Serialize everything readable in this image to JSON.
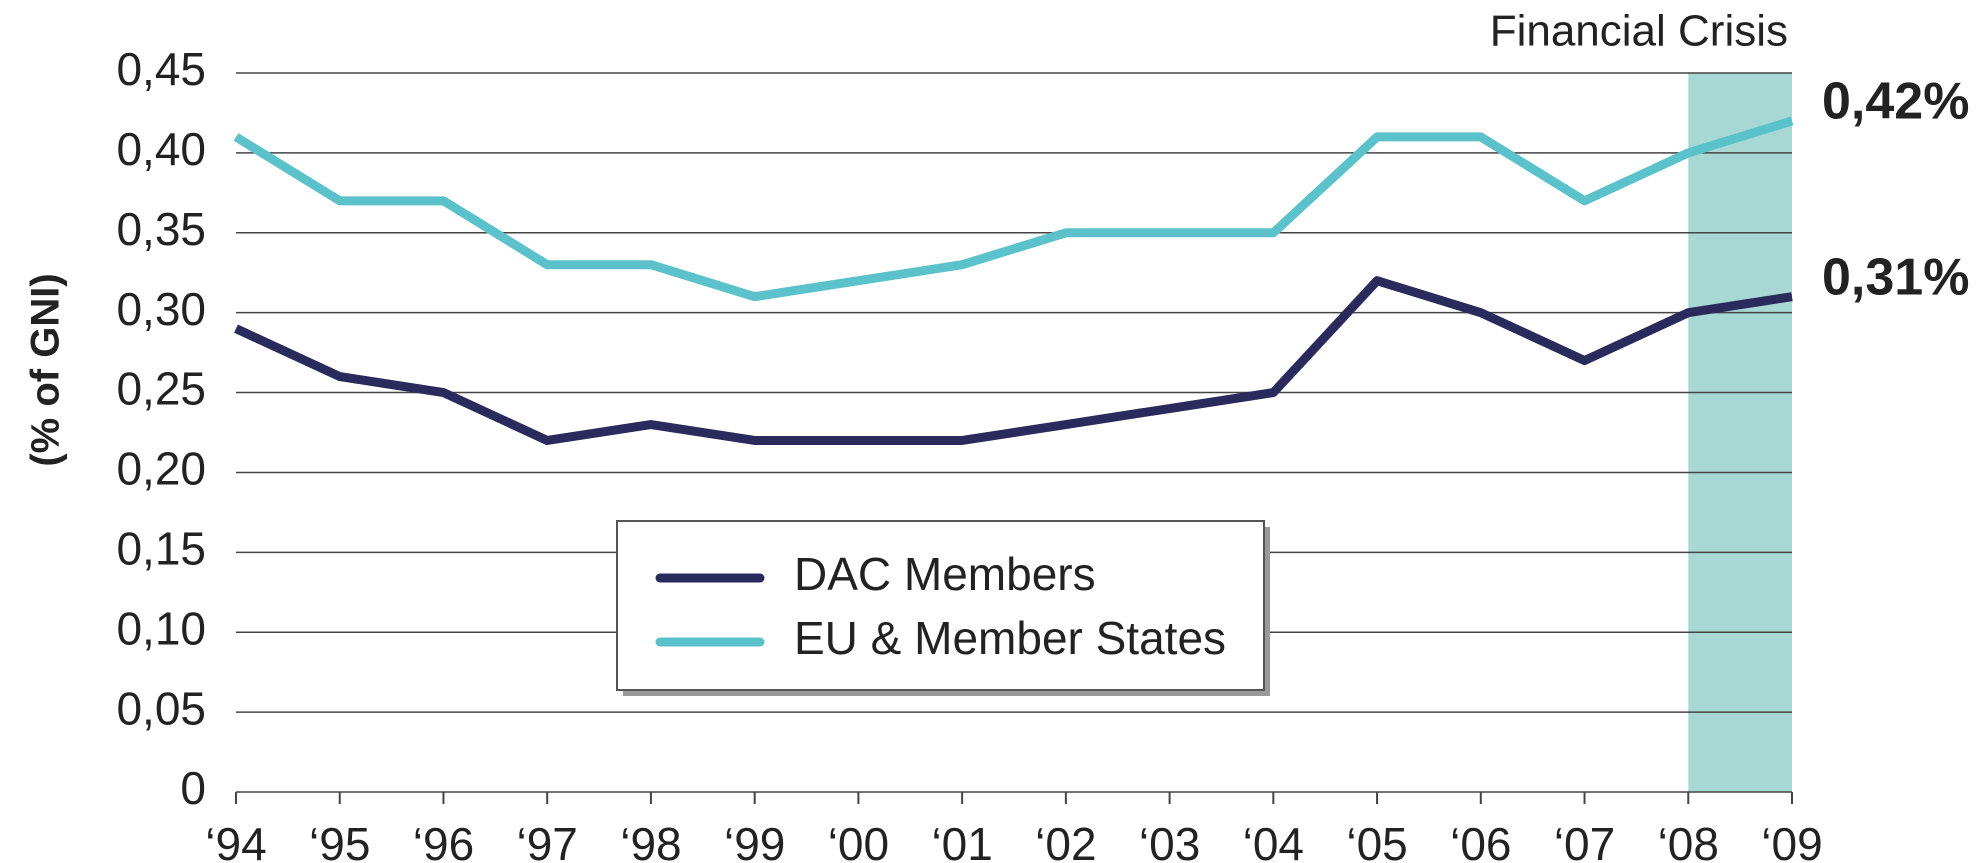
{
  "chart_data": {
    "type": "line",
    "y_label": "(% of GNI)",
    "categories": [
      "‘94",
      "‘95",
      "‘96",
      "‘97",
      "‘98",
      "‘99",
      "‘00",
      "‘01",
      "‘02",
      "‘03",
      "‘04",
      "‘05",
      "‘06",
      "‘07",
      "‘08",
      "‘09"
    ],
    "series": [
      {
        "name": "DAC Members",
        "color": "#2b2a5c",
        "values": [
          0.29,
          0.26,
          0.25,
          0.22,
          0.23,
          0.22,
          0.22,
          0.22,
          0.23,
          0.24,
          0.25,
          0.32,
          0.3,
          0.27,
          0.3,
          0.31
        ],
        "value_labels": [
          null,
          null,
          null,
          null,
          null,
          null,
          null,
          null,
          null,
          null,
          null,
          null,
          null,
          null,
          null,
          "0,31%"
        ]
      },
      {
        "name": "EU & Member States",
        "color": "#5bc2cc",
        "values": [
          0.41,
          0.37,
          0.37,
          0.33,
          0.33,
          0.31,
          0.32,
          0.33,
          0.35,
          0.35,
          0.35,
          0.41,
          0.41,
          0.37,
          0.4,
          0.42
        ],
        "value_labels": [
          null,
          null,
          null,
          null,
          null,
          null,
          null,
          null,
          null,
          null,
          null,
          null,
          null,
          null,
          null,
          "0,42%"
        ]
      }
    ],
    "ylim": [
      0,
      0.45
    ],
    "yticks": [
      0,
      {
        "value": 0.05,
        "label": "0,05"
      },
      {
        "value": 0.1,
        "label": "0,10"
      },
      {
        "value": 0.15,
        "label": "0,15"
      },
      {
        "value": 0.2,
        "label": "0,20"
      },
      {
        "value": 0.25,
        "label": "0,25"
      },
      {
        "value": 0.3,
        "label": "0,30"
      },
      {
        "value": 0.35,
        "label": "0,35"
      },
      {
        "value": 0.4,
        "label": "0,40"
      },
      {
        "value": 0.45,
        "label": "0,45"
      }
    ],
    "grid": true,
    "annotation": {
      "text": "Financial Crisis",
      "from": "‘08",
      "to": "‘09",
      "color": "#a8d8d4"
    }
  }
}
